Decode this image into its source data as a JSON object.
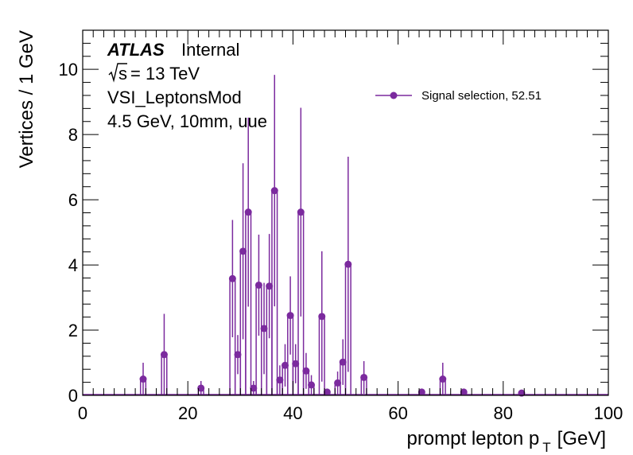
{
  "chart_data": {
    "type": "scatter",
    "xlabel_main": "prompt lepton p",
    "xlabel_sub": "T",
    "xlabel_unit": "[GeV]",
    "ylabel": "Vertices / 1 GeV",
    "xlim": [
      0,
      100
    ],
    "ylim": [
      0,
      11.2
    ],
    "x_ticks": [
      "0",
      "20",
      "40",
      "60",
      "80",
      "100"
    ],
    "y_ticks": [
      "0",
      "2",
      "4",
      "6",
      "8",
      "10"
    ],
    "grid": false,
    "legend_position": "top-right",
    "series": [
      {
        "name": "Signal selection, 52.51",
        "color": "#7b2a9e",
        "points": [
          {
            "x": 11.5,
            "y": 0.5,
            "err": 0.5
          },
          {
            "x": 15.5,
            "y": 1.25,
            "err": 1.25
          },
          {
            "x": 22.5,
            "y": 0.22,
            "err": 0.22
          },
          {
            "x": 28.5,
            "y": 3.58,
            "err": 1.8
          },
          {
            "x": 29.5,
            "y": 1.25,
            "err": 0.6
          },
          {
            "x": 30.5,
            "y": 4.42,
            "err": 2.7
          },
          {
            "x": 31.5,
            "y": 5.62,
            "err": 2.9
          },
          {
            "x": 32.5,
            "y": 0.22,
            "err": 0.22
          },
          {
            "x": 33.5,
            "y": 3.38,
            "err": 1.55
          },
          {
            "x": 34.5,
            "y": 2.05,
            "err": 1.4
          },
          {
            "x": 35.5,
            "y": 3.35,
            "err": 1.6
          },
          {
            "x": 36.5,
            "y": 6.28,
            "err": 3.55
          },
          {
            "x": 37.5,
            "y": 0.47,
            "err": 0.45
          },
          {
            "x": 38.5,
            "y": 0.92,
            "err": 0.65
          },
          {
            "x": 39.5,
            "y": 2.45,
            "err": 1.2
          },
          {
            "x": 40.5,
            "y": 0.97,
            "err": 0.6
          },
          {
            "x": 41.5,
            "y": 5.62,
            "err": 3.2
          },
          {
            "x": 42.5,
            "y": 0.75,
            "err": 0.55
          },
          {
            "x": 43.5,
            "y": 0.32,
            "err": 0.3
          },
          {
            "x": 45.5,
            "y": 2.42,
            "err": 2.0
          },
          {
            "x": 46.5,
            "y": 0.1,
            "err": 0.1
          },
          {
            "x": 48.5,
            "y": 0.38,
            "err": 0.35
          },
          {
            "x": 49.5,
            "y": 1.02,
            "err": 0.7
          },
          {
            "x": 50.5,
            "y": 4.02,
            "err": 3.3
          },
          {
            "x": 53.5,
            "y": 0.55,
            "err": 0.5
          },
          {
            "x": 64.5,
            "y": 0.1,
            "err": 0.1
          },
          {
            "x": 68.5,
            "y": 0.5,
            "err": 0.5
          },
          {
            "x": 72.5,
            "y": 0.1,
            "err": 0.1
          },
          {
            "x": 83.5,
            "y": 0.07,
            "err": 0.07
          }
        ]
      }
    ]
  },
  "annotations": {
    "atlas": "ATLAS",
    "internal": "Internal",
    "sqrt_s": "s",
    "energy": "= 13 TeV",
    "selection": "VSI_LeptonsMod",
    "sample": "4.5 GeV, 10mm, uue"
  }
}
